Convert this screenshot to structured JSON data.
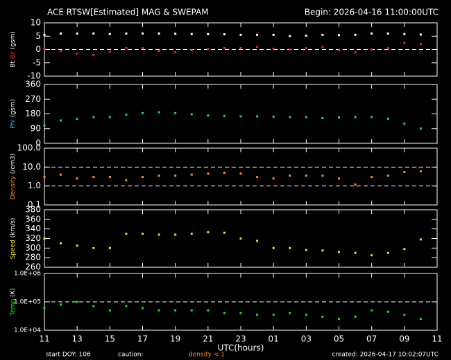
{
  "header": {
    "title": "ACE RTSW[Estimated] MAG & SWEPAM",
    "begin": "Begin: 2026-04-16 11:00:00UTC"
  },
  "footer": {
    "start": "start DOY: 106",
    "caution": "caution:",
    "density_note": "density < 1",
    "created": "created: 2026-04-17 10:02:07UTC"
  },
  "chart_data": [
    {
      "type": "scatter",
      "ylabel_parts": [
        {
          "text": "Bt",
          "color": "#ffffff"
        },
        {
          "text": "Bz",
          "color": "#ff2020"
        },
        {
          "text": "(gsm)",
          "color": "#ffffff"
        }
      ],
      "xlim": [
        11,
        35
      ],
      "ylim": [
        -10,
        10
      ],
      "yticks": [
        -10,
        -5,
        0,
        5,
        10
      ],
      "ref_lines": [
        0
      ],
      "x": [
        11,
        12,
        13,
        14,
        15,
        16,
        17,
        18,
        19,
        20,
        21,
        22,
        23,
        24,
        25,
        26,
        27,
        28,
        29,
        30,
        31,
        32,
        33,
        34
      ],
      "series": [
        {
          "name": "Bt",
          "color": "#ffffff",
          "values": [
            5.5,
            6,
            6,
            6,
            5.8,
            6,
            6,
            6,
            5.9,
            5.8,
            5.8,
            5.7,
            5.5,
            5.5,
            5.5,
            5,
            5.2,
            5.5,
            5.4,
            5.5,
            6,
            6,
            5.8,
            5.6
          ]
        },
        {
          "name": "Bz",
          "color": "#ff2020",
          "values": [
            0.2,
            -0.5,
            -1.5,
            -2,
            -0.8,
            0.5,
            0.5,
            -0.5,
            -1,
            -0.3,
            0.2,
            0.5,
            0.5,
            1,
            0.3,
            0,
            0.5,
            1,
            -0.3,
            -1,
            0,
            0.5,
            2.5,
            2
          ]
        }
      ]
    },
    {
      "type": "scatter",
      "ylabel_parts": [
        {
          "text": "Phi",
          "color": "#20c0e0"
        },
        {
          "text": "(gsm)",
          "color": "#ffffff"
        }
      ],
      "xlim": [
        11,
        35
      ],
      "ylim": [
        0,
        360
      ],
      "yticks": [
        0,
        90,
        180,
        270,
        360
      ],
      "x": [
        11,
        12,
        13,
        14,
        15,
        16,
        17,
        18,
        19,
        20,
        21,
        22,
        23,
        24,
        25,
        26,
        27,
        28,
        29,
        30,
        31,
        32,
        33,
        34
      ],
      "series": [
        {
          "name": "Phi",
          "color": "#20c0e0",
          "values": [
            110,
            140,
            150,
            160,
            160,
            175,
            185,
            190,
            185,
            178,
            170,
            168,
            165,
            165,
            162,
            160,
            160,
            155,
            158,
            160,
            160,
            150,
            120,
            90
          ]
        }
      ]
    },
    {
      "type": "scatter",
      "log": true,
      "ylabel_parts": [
        {
          "text": "Density",
          "color": "#ff9020"
        },
        {
          "text": "(/cm3)",
          "color": "#ffffff"
        }
      ],
      "xlim": [
        11,
        35
      ],
      "ylim": [
        0.1,
        100
      ],
      "yticks": [
        0.1,
        {
          "value": 1,
          "label": "1.0"
        },
        {
          "value": 10,
          "label": "10.0"
        },
        {
          "value": 100,
          "label": "100.0"
        }
      ],
      "ref_lines": [
        1,
        10
      ],
      "x": [
        11,
        12,
        13,
        14,
        15,
        16,
        17,
        18,
        19,
        20,
        21,
        22,
        23,
        24,
        25,
        26,
        27,
        28,
        29,
        30,
        31,
        32,
        33,
        34
      ],
      "series": [
        {
          "name": "Density",
          "color": "#ff9020",
          "values": [
            3,
            4,
            2.5,
            3,
            3,
            2,
            3,
            3.5,
            3.5,
            4,
            4.5,
            5,
            4.5,
            3,
            2.5,
            3.5,
            3.5,
            3.5,
            2.5,
            1.2,
            3,
            3.5,
            5.5,
            6
          ]
        }
      ]
    },
    {
      "type": "scatter",
      "ylabel_parts": [
        {
          "text": "Speed",
          "color": "#f0e020"
        },
        {
          "text": "(km/s)",
          "color": "#ffffff"
        }
      ],
      "xlim": [
        11,
        35
      ],
      "ylim": [
        260,
        380
      ],
      "yticks": [
        260,
        280,
        300,
        320,
        340,
        360,
        380
      ],
      "x": [
        11,
        12,
        13,
        14,
        15,
        16,
        17,
        18,
        19,
        20,
        21,
        22,
        23,
        24,
        25,
        26,
        27,
        28,
        29,
        30,
        31,
        32,
        33,
        34
      ],
      "series": [
        {
          "name": "Speed",
          "color": "#f0e020",
          "values": [
            320,
            310,
            305,
            300,
            300,
            330,
            330,
            328,
            328,
            330,
            333,
            332,
            320,
            315,
            300,
            300,
            296,
            295,
            292,
            290,
            285,
            290,
            298,
            318
          ]
        }
      ]
    },
    {
      "type": "scatter",
      "log": true,
      "ylabel_parts": [
        {
          "text": "Temp",
          "color": "#20e020"
        },
        {
          "text": "(K)",
          "color": "#ffffff"
        }
      ],
      "xlim": [
        11,
        35
      ],
      "ylim": [
        10000,
        1000000
      ],
      "yticks": [
        {
          "value": 10000,
          "label": "1.0E+04"
        },
        {
          "value": 100000,
          "label": "1.0E+05"
        },
        {
          "value": 1000000,
          "label": "1.0E+06"
        }
      ],
      "ref_lines": [
        100000
      ],
      "x": [
        11,
        12,
        13,
        14,
        15,
        16,
        17,
        18,
        19,
        20,
        21,
        22,
        23,
        24,
        25,
        26,
        27,
        28,
        29,
        30,
        31,
        32,
        33,
        34
      ],
      "series": [
        {
          "name": "Temp",
          "color": "#20e020",
          "values": [
            60000,
            80000,
            100000,
            70000,
            50000,
            70000,
            60000,
            50000,
            50000,
            50000,
            50000,
            40000,
            40000,
            35000,
            35000,
            40000,
            35000,
            30000,
            25000,
            30000,
            50000,
            45000,
            35000,
            25000
          ]
        }
      ],
      "xlabel": "UTC(hours)",
      "xticks": [
        11,
        13,
        15,
        17,
        19,
        21,
        23,
        {
          "value": 25,
          "label": "01"
        },
        {
          "value": 27,
          "label": "03"
        },
        {
          "value": 29,
          "label": "05"
        },
        {
          "value": 31,
          "label": "07"
        },
        {
          "value": 33,
          "label": "09"
        },
        {
          "value": 35,
          "label": "11"
        }
      ]
    }
  ]
}
